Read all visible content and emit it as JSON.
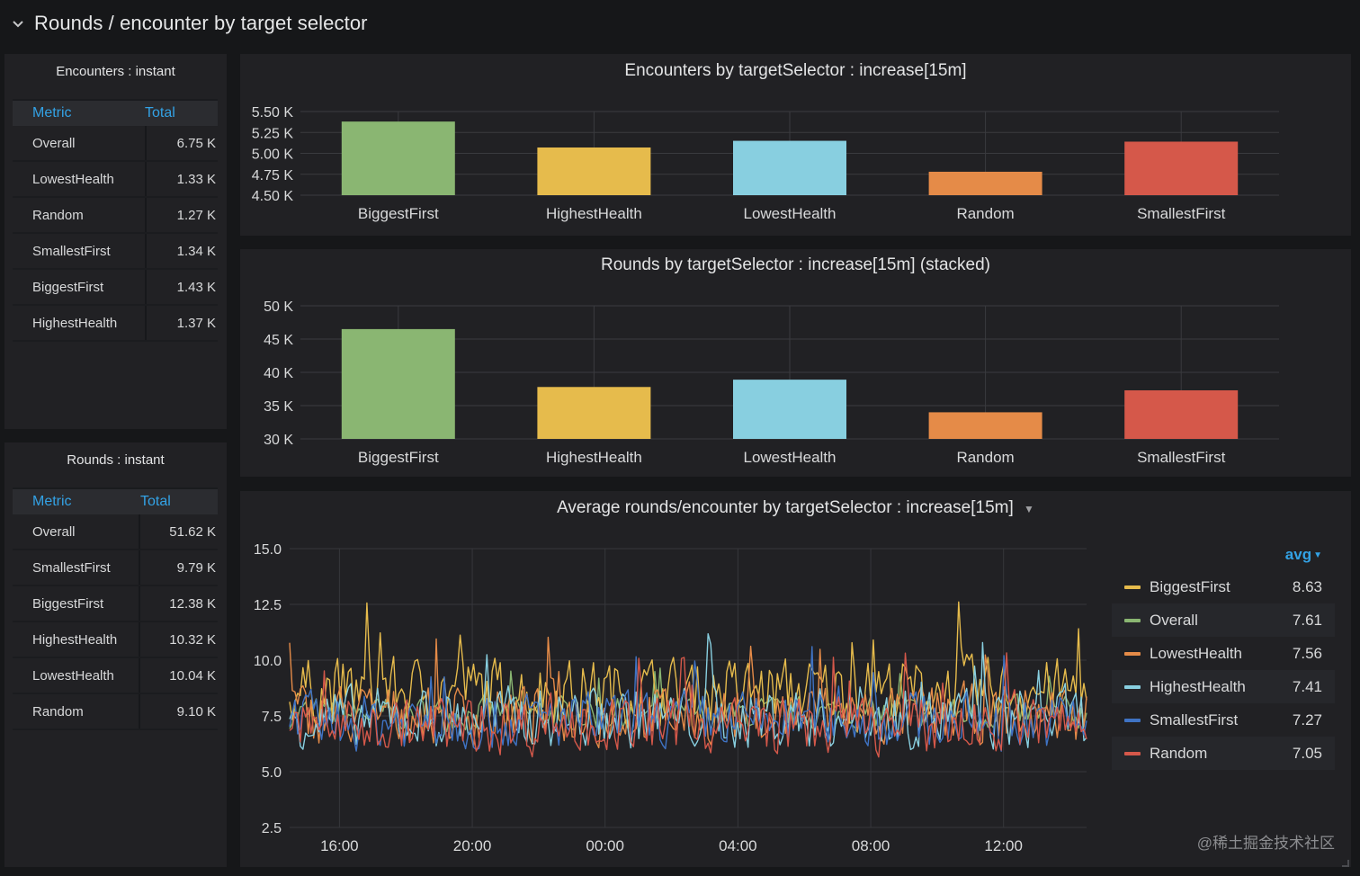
{
  "row": {
    "title": "Rounds / encounter by target selector"
  },
  "encounters_table": {
    "title": "Encounters : instant",
    "headers": [
      "Metric",
      "Total"
    ],
    "rows": [
      {
        "name": "Overall",
        "value": "6.75 K"
      },
      {
        "name": "LowestHealth",
        "value": "1.33 K"
      },
      {
        "name": "Random",
        "value": "1.27 K"
      },
      {
        "name": "SmallestFirst",
        "value": "1.34 K"
      },
      {
        "name": "BiggestFirst",
        "value": "1.43 K"
      },
      {
        "name": "HighestHealth",
        "value": "1.37 K"
      }
    ]
  },
  "rounds_table": {
    "title": "Rounds : instant",
    "headers": [
      "Metric",
      "Total"
    ],
    "rows": [
      {
        "name": "Overall",
        "value": "51.62 K"
      },
      {
        "name": "SmallestFirst",
        "value": "9.79 K"
      },
      {
        "name": "BiggestFirst",
        "value": "12.38 K"
      },
      {
        "name": "HighestHealth",
        "value": "10.32 K"
      },
      {
        "name": "LowestHealth",
        "value": "10.04 K"
      },
      {
        "name": "Random",
        "value": "9.10 K"
      }
    ]
  },
  "chart_data": [
    {
      "type": "bar",
      "title": "Encounters by targetSelector : increase[15m]",
      "categories": [
        "BiggestFirst",
        "HighestHealth",
        "LowestHealth",
        "Random",
        "SmallestFirst"
      ],
      "values": [
        5.38,
        5.07,
        5.15,
        4.78,
        5.14
      ],
      "colors": [
        "#8ab672",
        "#e6bb4c",
        "#88cfe0",
        "#e58b48",
        "#d5584a"
      ],
      "ylim": [
        4.5,
        5.5
      ],
      "yticks": [
        4.5,
        4.75,
        5.0,
        5.25,
        5.5
      ],
      "ytick_labels": [
        "4.50 K",
        "4.75 K",
        "5.00 K",
        "5.25 K",
        "5.50 K"
      ],
      "grid": true
    },
    {
      "type": "bar",
      "title": "Rounds by targetSelector : increase[15m] (stacked)",
      "categories": [
        "BiggestFirst",
        "HighestHealth",
        "LowestHealth",
        "Random",
        "SmallestFirst"
      ],
      "values": [
        46.5,
        37.8,
        38.9,
        34.0,
        37.3
      ],
      "colors": [
        "#8ab672",
        "#e6bb4c",
        "#88cfe0",
        "#e58b48",
        "#d5584a"
      ],
      "ylim": [
        30,
        50
      ],
      "yticks": [
        30,
        35,
        40,
        45,
        50
      ],
      "ytick_labels": [
        "30 K",
        "35 K",
        "40 K",
        "45 K",
        "50 K"
      ],
      "grid": true
    },
    {
      "type": "line",
      "title": "Average rounds/encounter by targetSelector : increase[15m]",
      "xlim_hours": [
        14.5,
        38.5
      ],
      "xticks_hours": [
        16,
        20,
        24,
        28,
        32,
        36
      ],
      "xtick_labels": [
        "16:00",
        "20:00",
        "00:00",
        "04:00",
        "08:00",
        "12:00"
      ],
      "ylim": [
        2.5,
        15
      ],
      "yticks": [
        2.5,
        5.0,
        7.5,
        10.0,
        12.5,
        15.0
      ],
      "ytick_labels": [
        "2.5",
        "5.0",
        "7.5",
        "10.0",
        "12.5",
        "15.0"
      ],
      "grid": true,
      "legend_position": "right",
      "legend_header": "avg",
      "series": [
        {
          "name": "BiggestFirst",
          "color": "#e6bb4c",
          "avg": "8.63",
          "mean": 8.63,
          "amp": 1.4
        },
        {
          "name": "Overall",
          "color": "#8ab672",
          "avg": "7.61",
          "mean": 7.61,
          "amp": 0.7
        },
        {
          "name": "LowestHealth",
          "color": "#e58b48",
          "avg": "7.56",
          "mean": 7.56,
          "amp": 1.3
        },
        {
          "name": "HighestHealth",
          "color": "#88cfe0",
          "avg": "7.41",
          "mean": 7.41,
          "amp": 1.3
        },
        {
          "name": "SmallestFirst",
          "color": "#3f73c4",
          "avg": "7.27",
          "mean": 7.27,
          "amp": 1.2
        },
        {
          "name": "Random",
          "color": "#d5584a",
          "avg": "7.05",
          "mean": 7.05,
          "amp": 1.2
        }
      ]
    }
  ],
  "watermark": "@稀土掘金技术社区"
}
